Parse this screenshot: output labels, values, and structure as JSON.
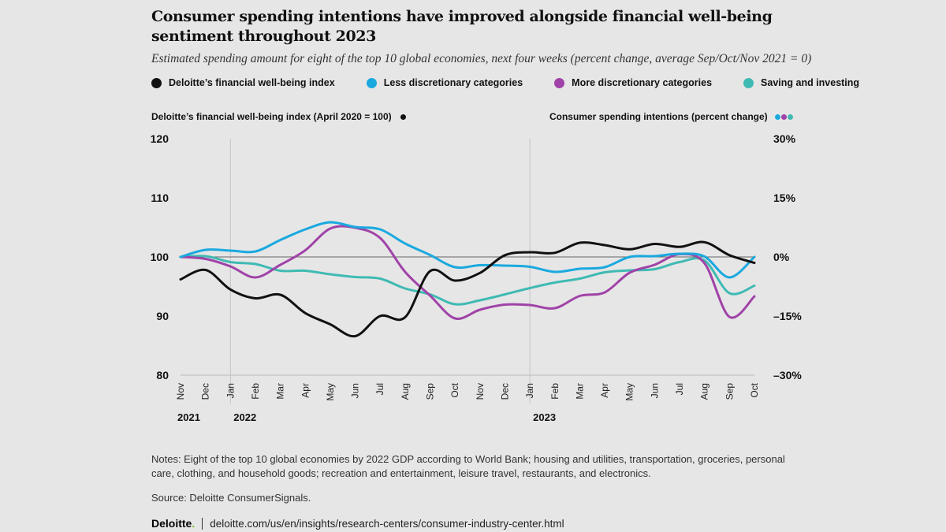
{
  "header": {
    "title": "Consumer spending intentions have improved alongside financial well-being sentiment throughout 2023",
    "subtitle": "Estimated spending amount for eight of the top 10 global economies, next four weeks (percent change, average Sep/Oct/Nov 2021 = 0)"
  },
  "legend": [
    {
      "label": "Deloitte’s financial well-being index",
      "color": "#111111"
    },
    {
      "label": "Less discretionary categories",
      "color": "#1aa9df"
    },
    {
      "label": "More discretionary categories",
      "color": "#a043a8"
    },
    {
      "label": "Saving and investing",
      "color": "#3fbab3"
    }
  ],
  "axis_titles": {
    "left": "Deloitte’s financial well-being index (April 2020 = 100)",
    "right": "Consumer spending intentions (percent change)"
  },
  "chart_data": {
    "type": "line",
    "x": [
      "Nov",
      "Dec",
      "Jan",
      "Feb",
      "Mar",
      "Apr",
      "May",
      "Jun",
      "Jul",
      "Aug",
      "Sep",
      "Oct",
      "Nov",
      "Dec",
      "Jan",
      "Feb",
      "Mar",
      "Apr",
      "May",
      "Jun",
      "Jul",
      "Aug",
      "Sep",
      "Oct"
    ],
    "years": [
      {
        "label": "2021",
        "start_index": 0
      },
      {
        "label": "2022",
        "start_index": 2
      },
      {
        "label": "2023",
        "start_index": 14
      }
    ],
    "y_left": {
      "ticks": [
        80,
        90,
        100,
        110,
        120
      ],
      "range": [
        80,
        120
      ]
    },
    "y_right": {
      "ticks": [
        "30%",
        "15%",
        "0%",
        "–15%",
        "–30%"
      ],
      "range": [
        -30,
        30
      ]
    },
    "grid": "vertical lines at Jan 2022 and Jan 2023; horizontal reference line at 100 / 0%",
    "series": [
      {
        "name": "Deloitte’s financial well-being index",
        "axis": "left",
        "color": "#111111",
        "values": [
          96.2,
          97.8,
          94.5,
          93.0,
          93.6,
          90.5,
          88.6,
          86.6,
          90.0,
          89.8,
          97.6,
          96.0,
          97.3,
          100.3,
          100.8,
          100.7,
          102.4,
          102.0,
          101.3,
          102.2,
          101.7,
          102.5,
          100.3,
          99.0
        ]
      },
      {
        "name": "Less discretionary categories",
        "axis": "right",
        "color": "#1aa9df",
        "values": [
          0.0,
          1.8,
          1.6,
          1.4,
          4.3,
          7.0,
          8.8,
          7.6,
          7.0,
          3.4,
          0.5,
          -2.6,
          -2.1,
          -2.2,
          -2.5,
          -3.8,
          -3.0,
          -2.6,
          0.0,
          0.2,
          0.8,
          0.1,
          -5.2,
          0.0
        ]
      },
      {
        "name": "More discretionary categories",
        "axis": "right",
        "color": "#a043a8",
        "values": [
          0.0,
          -0.5,
          -2.4,
          -5.2,
          -2.0,
          1.7,
          7.2,
          7.4,
          4.8,
          -3.8,
          -9.8,
          -15.6,
          -13.4,
          -12.1,
          -12.2,
          -13.0,
          -9.9,
          -9.0,
          -4.0,
          -2.0,
          0.7,
          -1.6,
          -15.2,
          -10.0
        ]
      },
      {
        "name": "Saving and investing",
        "axis": "right",
        "color": "#3fbab3",
        "values": [
          0.0,
          0.2,
          -1.3,
          -1.8,
          -3.5,
          -3.5,
          -4.4,
          -5.1,
          -5.5,
          -8.0,
          -9.5,
          -12.0,
          -11.0,
          -9.5,
          -7.9,
          -6.5,
          -5.5,
          -3.9,
          -3.4,
          -3.1,
          -1.3,
          -0.9,
          -9.2,
          -7.3
        ]
      }
    ]
  },
  "notes": "Notes: Eight of the top 10 global economies by 2022 GDP according to World Bank; housing and utilities, transportation, groceries, personal care, clothing, and household goods; recreation and entertainment, leisure travel, restaurants, and electronics.",
  "source": "Source: Deloitte ConsumerSignals.",
  "footer": {
    "brand": "Deloitte",
    "brand_dot": ".",
    "link": "deloitte.com/us/en/insights/research-centers/consumer-industry-center.html"
  }
}
